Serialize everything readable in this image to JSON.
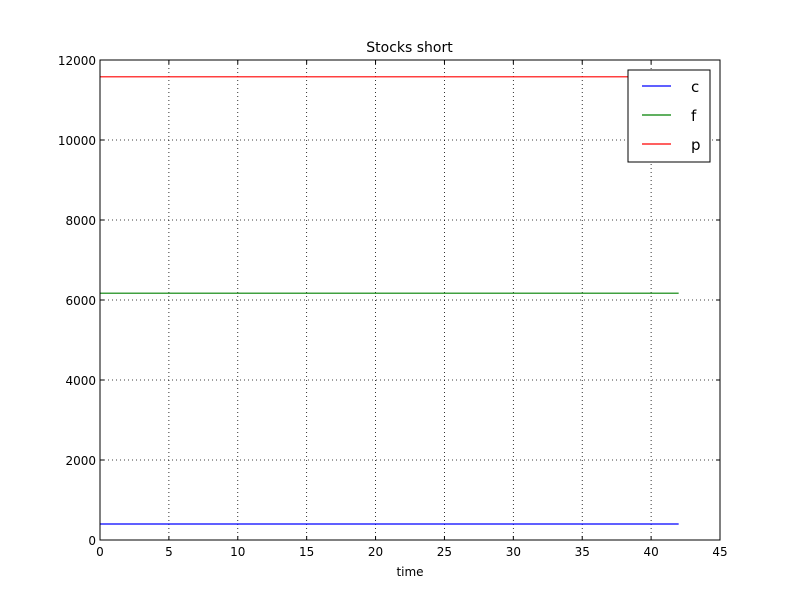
{
  "chart_data": {
    "type": "line",
    "title": "Stocks short",
    "xlabel": "time",
    "ylabel": "",
    "xlim": [
      0,
      45
    ],
    "ylim": [
      0,
      12000
    ],
    "xticks": [
      0,
      5,
      10,
      15,
      20,
      25,
      30,
      35,
      40,
      45
    ],
    "yticks": [
      0,
      2000,
      4000,
      6000,
      8000,
      10000,
      12000
    ],
    "xtick_labels": [
      "0",
      "5",
      "10",
      "15",
      "20",
      "25",
      "30",
      "35",
      "40",
      "45"
    ],
    "ytick_labels": [
      "0",
      "2000",
      "4000",
      "6000",
      "8000",
      "10000",
      "12000"
    ],
    "grid": true,
    "legend_position": "top-right",
    "series": [
      {
        "name": "c",
        "color": "#0000ff",
        "x": [
          0,
          42
        ],
        "y": [
          400,
          400
        ]
      },
      {
        "name": "f",
        "color": "#008000",
        "x": [
          0,
          42
        ],
        "y": [
          6170,
          6170
        ]
      },
      {
        "name": "p",
        "color": "#ff0000",
        "x": [
          0,
          42
        ],
        "y": [
          11580,
          11580
        ]
      }
    ]
  }
}
